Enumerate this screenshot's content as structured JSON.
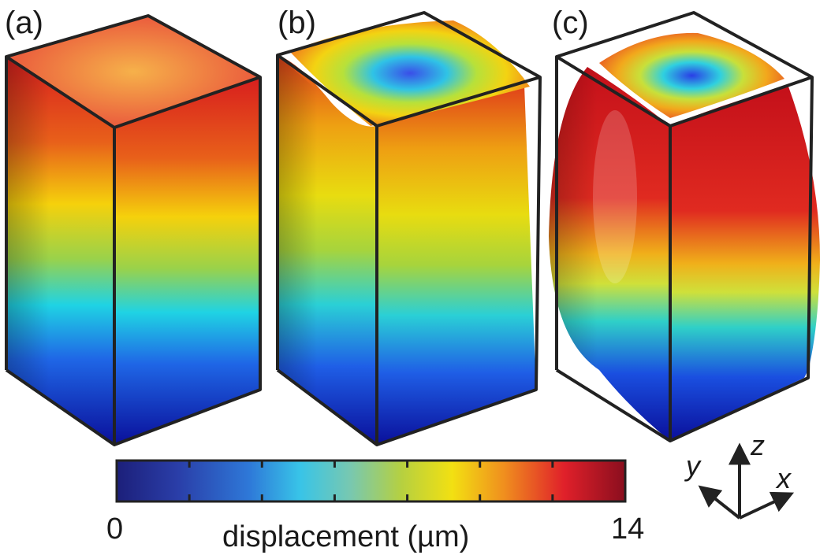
{
  "panels": [
    {
      "id": "a",
      "label": "(a)"
    },
    {
      "id": "b",
      "label": "(b)"
    },
    {
      "id": "c",
      "label": "(c)"
    }
  ],
  "colorbar": {
    "min_label": "0",
    "max_label": "14",
    "title": "displacement (µm)",
    "min": 0,
    "max": 14,
    "tick_count": 8,
    "colormap": "jet-like"
  },
  "axes": {
    "z": "z",
    "y": "y",
    "x": "x"
  }
}
